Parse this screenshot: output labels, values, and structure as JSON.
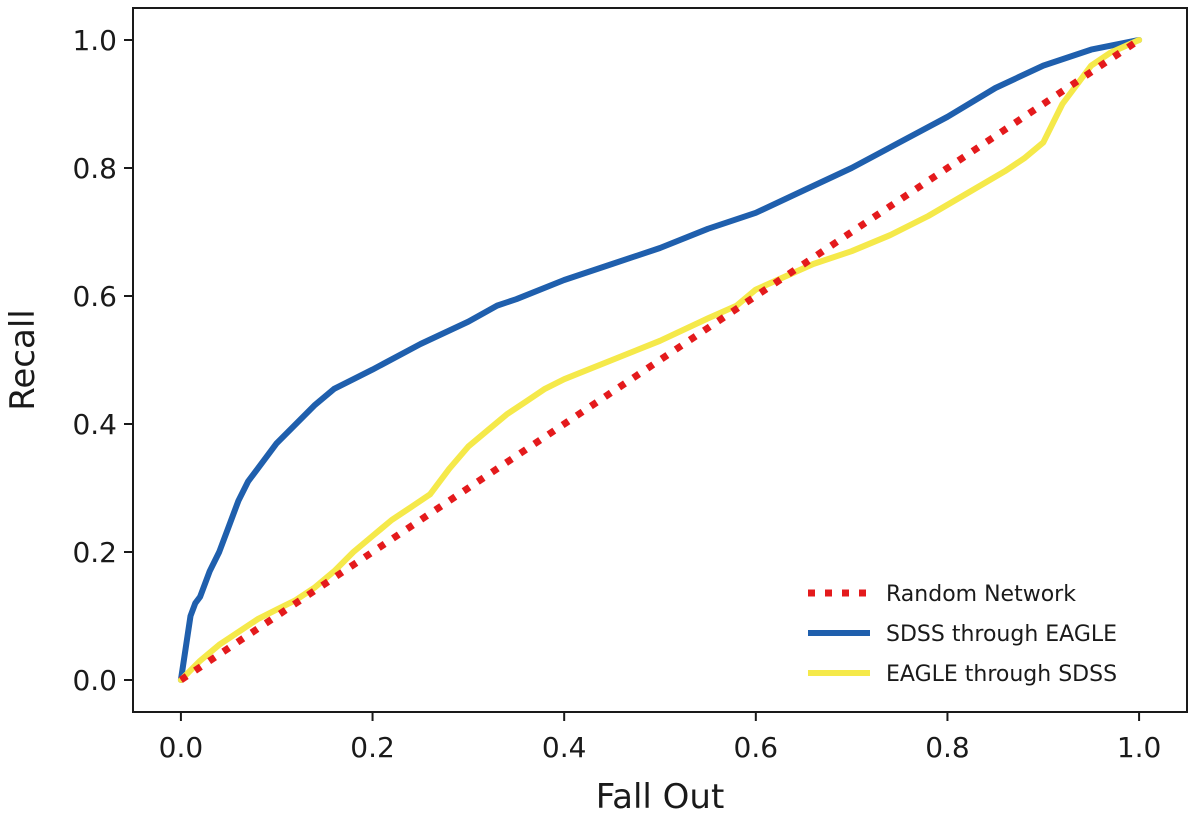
{
  "chart_data": {
    "type": "line",
    "title": "",
    "xlabel": "Fall Out",
    "ylabel": "Recall",
    "xlim": [
      -0.05,
      1.05
    ],
    "ylim": [
      -0.05,
      1.05
    ],
    "xticks": [
      0.0,
      0.2,
      0.4,
      0.6,
      0.8,
      1.0
    ],
    "yticks": [
      0.0,
      0.2,
      0.4,
      0.6,
      0.8,
      1.0
    ],
    "xtick_labels": [
      "0.0",
      "0.2",
      "0.4",
      "0.6",
      "0.8",
      "1.0"
    ],
    "ytick_labels": [
      "0.0",
      "0.2",
      "0.4",
      "0.6",
      "0.8",
      "1.0"
    ],
    "grid": false,
    "legend_position": "bottom-right",
    "series": [
      {
        "name": "Random Network",
        "color": "#e41a1c",
        "style": "dotted",
        "x": [
          0.0,
          1.0
        ],
        "y": [
          0.0,
          1.0
        ]
      },
      {
        "name": "SDSS through EAGLE",
        "color": "#1f5fad",
        "style": "solid",
        "x": [
          0.0,
          0.005,
          0.01,
          0.015,
          0.02,
          0.03,
          0.04,
          0.05,
          0.06,
          0.07,
          0.08,
          0.1,
          0.12,
          0.14,
          0.16,
          0.18,
          0.2,
          0.25,
          0.3,
          0.33,
          0.35,
          0.4,
          0.45,
          0.5,
          0.55,
          0.6,
          0.65,
          0.7,
          0.75,
          0.8,
          0.85,
          0.9,
          0.95,
          1.0
        ],
        "y": [
          0.0,
          0.05,
          0.1,
          0.12,
          0.13,
          0.17,
          0.2,
          0.24,
          0.28,
          0.31,
          0.33,
          0.37,
          0.4,
          0.43,
          0.455,
          0.47,
          0.485,
          0.525,
          0.56,
          0.585,
          0.595,
          0.625,
          0.65,
          0.675,
          0.705,
          0.73,
          0.765,
          0.8,
          0.84,
          0.88,
          0.925,
          0.96,
          0.985,
          1.0
        ]
      },
      {
        "name": "EAGLE through SDSS",
        "color": "#f5e94a",
        "style": "solid",
        "x": [
          0.0,
          0.02,
          0.04,
          0.06,
          0.08,
          0.1,
          0.12,
          0.14,
          0.16,
          0.18,
          0.2,
          0.22,
          0.24,
          0.26,
          0.28,
          0.3,
          0.32,
          0.34,
          0.36,
          0.38,
          0.4,
          0.45,
          0.5,
          0.55,
          0.58,
          0.6,
          0.63,
          0.66,
          0.7,
          0.74,
          0.78,
          0.82,
          0.86,
          0.88,
          0.9,
          0.92,
          0.95,
          0.97,
          1.0
        ],
        "y": [
          0.0,
          0.03,
          0.055,
          0.075,
          0.095,
          0.11,
          0.125,
          0.145,
          0.17,
          0.2,
          0.225,
          0.25,
          0.27,
          0.29,
          0.33,
          0.365,
          0.39,
          0.415,
          0.435,
          0.455,
          0.47,
          0.5,
          0.53,
          0.565,
          0.585,
          0.61,
          0.63,
          0.65,
          0.67,
          0.695,
          0.725,
          0.76,
          0.795,
          0.815,
          0.84,
          0.9,
          0.96,
          0.98,
          1.0
        ]
      }
    ]
  }
}
